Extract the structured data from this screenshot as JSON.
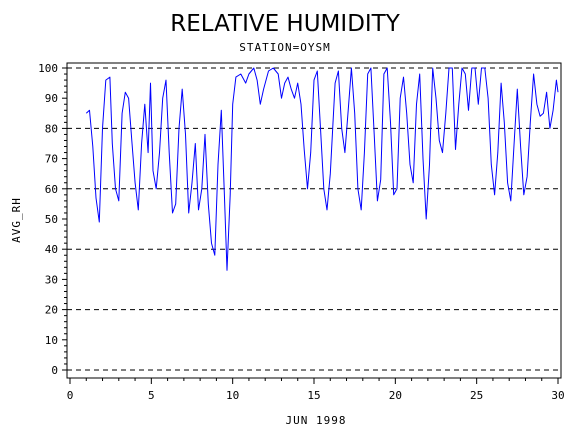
{
  "chart_data": {
    "type": "line",
    "title": "RELATIVE HUMIDITY",
    "subtitle": "STATION=OYSM",
    "xlabel": "JUN 1998",
    "ylabel": "AVG_RH",
    "xlim": [
      0,
      30
    ],
    "ylim": [
      0,
      100
    ],
    "xticks": [
      "0",
      "5",
      "10",
      "15",
      "20",
      "25",
      "30"
    ],
    "yticks": [
      "0",
      "10",
      "20",
      "30",
      "40",
      "50",
      "60",
      "70",
      "80",
      "90",
      "100"
    ],
    "gridlines_y": [
      0,
      20,
      40,
      60,
      80,
      100
    ],
    "grid": "dashed horizontal",
    "series": [
      {
        "color": "#0000ff",
        "points": [
          [
            1.0,
            85
          ],
          [
            1.2,
            86
          ],
          [
            1.4,
            74
          ],
          [
            1.6,
            57
          ],
          [
            1.8,
            49
          ],
          [
            2.0,
            80
          ],
          [
            2.2,
            96
          ],
          [
            2.45,
            97
          ],
          [
            2.6,
            75
          ],
          [
            2.8,
            60
          ],
          [
            3.0,
            56
          ],
          [
            3.2,
            85
          ],
          [
            3.4,
            92
          ],
          [
            3.6,
            90
          ],
          [
            3.8,
            76
          ],
          [
            4.0,
            62
          ],
          [
            4.2,
            53
          ],
          [
            4.4,
            75
          ],
          [
            4.6,
            88
          ],
          [
            4.8,
            72
          ],
          [
            4.95,
            95
          ],
          [
            5.1,
            66
          ],
          [
            5.3,
            60
          ],
          [
            5.5,
            72
          ],
          [
            5.7,
            90
          ],
          [
            5.9,
            96
          ],
          [
            6.1,
            72
          ],
          [
            6.3,
            52
          ],
          [
            6.5,
            55
          ],
          [
            6.7,
            80
          ],
          [
            6.9,
            93
          ],
          [
            7.1,
            78
          ],
          [
            7.3,
            52
          ],
          [
            7.5,
            62
          ],
          [
            7.7,
            75
          ],
          [
            7.9,
            53
          ],
          [
            8.1,
            60
          ],
          [
            8.3,
            78
          ],
          [
            8.5,
            55
          ],
          [
            8.7,
            42
          ],
          [
            8.9,
            38
          ],
          [
            9.1,
            68
          ],
          [
            9.3,
            86
          ],
          [
            9.5,
            57
          ],
          [
            9.65,
            33
          ],
          [
            9.85,
            58
          ],
          [
            10.0,
            88
          ],
          [
            10.2,
            97
          ],
          [
            10.5,
            98
          ],
          [
            10.8,
            95
          ],
          [
            11.0,
            98
          ],
          [
            11.3,
            100
          ],
          [
            11.5,
            96
          ],
          [
            11.7,
            88
          ],
          [
            11.9,
            93
          ],
          [
            12.2,
            99
          ],
          [
            12.5,
            100
          ],
          [
            12.8,
            98
          ],
          [
            13.0,
            90
          ],
          [
            13.2,
            95
          ],
          [
            13.4,
            97
          ],
          [
            13.6,
            93
          ],
          [
            13.8,
            90
          ],
          [
            14.0,
            95
          ],
          [
            14.2,
            88
          ],
          [
            14.4,
            73
          ],
          [
            14.6,
            60
          ],
          [
            14.8,
            72
          ],
          [
            15.0,
            96
          ],
          [
            15.2,
            99
          ],
          [
            15.4,
            80
          ],
          [
            15.6,
            60
          ],
          [
            15.8,
            53
          ],
          [
            16.0,
            65
          ],
          [
            16.3,
            95
          ],
          [
            16.5,
            99
          ],
          [
            16.7,
            80
          ],
          [
            16.9,
            72
          ],
          [
            17.1,
            86
          ],
          [
            17.3,
            100
          ],
          [
            17.5,
            85
          ],
          [
            17.7,
            60
          ],
          [
            17.9,
            53
          ],
          [
            18.1,
            72
          ],
          [
            18.3,
            98
          ],
          [
            18.5,
            100
          ],
          [
            18.7,
            78
          ],
          [
            18.9,
            56
          ],
          [
            19.1,
            63
          ],
          [
            19.3,
            98
          ],
          [
            19.5,
            100
          ],
          [
            19.7,
            82
          ],
          [
            19.9,
            58
          ],
          [
            20.1,
            60
          ],
          [
            20.3,
            90
          ],
          [
            20.5,
            97
          ],
          [
            20.7,
            85
          ],
          [
            20.9,
            68
          ],
          [
            21.1,
            62
          ],
          [
            21.3,
            88
          ],
          [
            21.5,
            98
          ],
          [
            21.7,
            70
          ],
          [
            21.9,
            50
          ],
          [
            22.1,
            68
          ],
          [
            22.3,
            100
          ],
          [
            22.5,
            90
          ],
          [
            22.7,
            76
          ],
          [
            22.9,
            72
          ],
          [
            23.1,
            85
          ],
          [
            23.3,
            100
          ],
          [
            23.5,
            100
          ],
          [
            23.7,
            73
          ],
          [
            23.9,
            88
          ],
          [
            24.1,
            100
          ],
          [
            24.3,
            98
          ],
          [
            24.5,
            86
          ],
          [
            24.7,
            100
          ],
          [
            24.9,
            100
          ],
          [
            25.1,
            88
          ],
          [
            25.3,
            100
          ],
          [
            25.5,
            100
          ],
          [
            25.7,
            90
          ],
          [
            25.9,
            68
          ],
          [
            26.1,
            58
          ],
          [
            26.3,
            72
          ],
          [
            26.5,
            95
          ],
          [
            26.7,
            82
          ],
          [
            26.9,
            62
          ],
          [
            27.1,
            56
          ],
          [
            27.3,
            75
          ],
          [
            27.5,
            93
          ],
          [
            27.7,
            74
          ],
          [
            27.9,
            58
          ],
          [
            28.1,
            64
          ],
          [
            28.3,
            82
          ],
          [
            28.5,
            98
          ],
          [
            28.7,
            88
          ],
          [
            28.9,
            84
          ],
          [
            29.1,
            85
          ],
          [
            29.3,
            92
          ],
          [
            29.5,
            80
          ],
          [
            29.7,
            86
          ],
          [
            29.9,
            96
          ],
          [
            30.0,
            92
          ]
        ]
      }
    ]
  }
}
